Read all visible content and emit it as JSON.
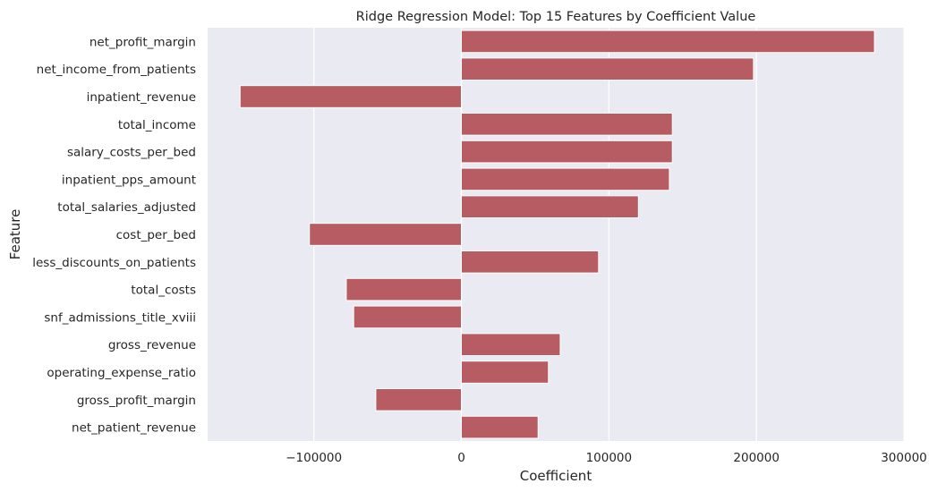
{
  "chart_data": {
    "type": "bar",
    "orientation": "horizontal",
    "title": "Ridge Regression Model: Top 15 Features by Coefficient Value",
    "xlabel": "Coefficient",
    "ylabel": "Feature",
    "xlim": [
      -172000,
      300000
    ],
    "xticks": [
      -100000,
      0,
      100000,
      200000,
      300000
    ],
    "xtick_labels": [
      "−100000",
      "0",
      "100000",
      "200000",
      "300000"
    ],
    "grid": true,
    "legend": "none",
    "bar_color": "#b85c63",
    "background_color": "#eaeaf2",
    "grid_color": "#ffffff",
    "categories": [
      "net_profit_margin",
      "net_income_from_patients",
      "inpatient_revenue",
      "total_income",
      "salary_costs_per_bed",
      "inpatient_pps_amount",
      "total_salaries_adjusted",
      "cost_per_bed",
      "less_discounts_on_patients",
      "total_costs",
      "snf_admissions_title_xviii",
      "gross_revenue",
      "operating_expense_ratio",
      "gross_profit_margin",
      "net_patient_revenue"
    ],
    "values": [
      280000,
      198000,
      -150000,
      143000,
      143000,
      141000,
      120000,
      -103000,
      93000,
      -78000,
      -73000,
      67000,
      59000,
      -58000,
      52000
    ]
  }
}
